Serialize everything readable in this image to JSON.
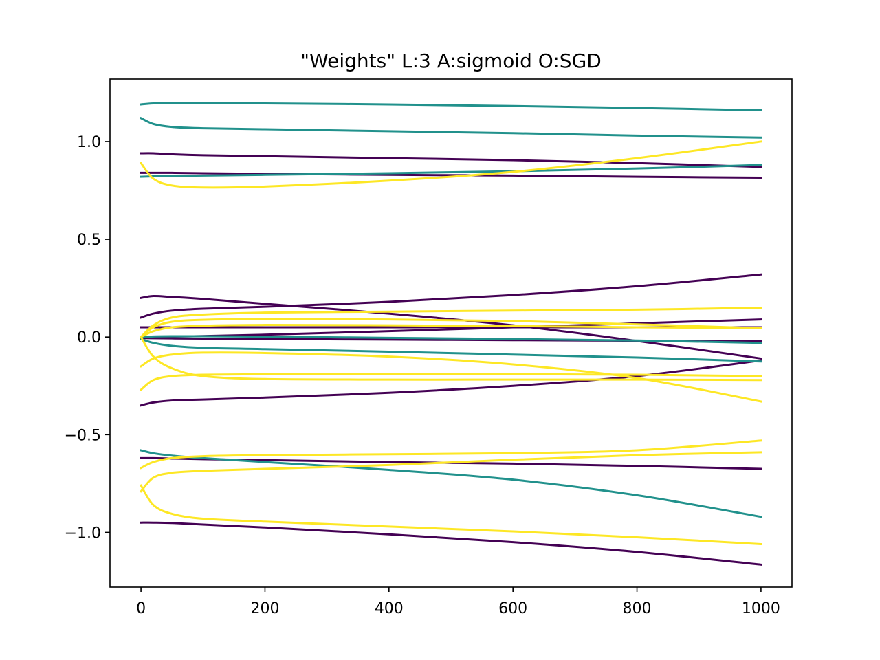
{
  "chart_data": {
    "type": "line",
    "title": "\"Weights\" L:3 A:sigmoid O:SGD",
    "xlabel": "",
    "ylabel": "",
    "xlim": [
      -50,
      1050
    ],
    "ylim": [
      -1.28,
      1.32
    ],
    "xticks": [
      0,
      200,
      400,
      600,
      800,
      1000
    ],
    "xtick_labels": [
      "0",
      "200",
      "400",
      "600",
      "800",
      "1000"
    ],
    "yticks": [
      -1.0,
      -0.5,
      0.0,
      0.5,
      1.0
    ],
    "ytick_labels": [
      "−1.0",
      "−0.5",
      "0.0",
      "0.5",
      "1.0"
    ],
    "grid": false,
    "legend": "none",
    "colors": {
      "layer1": "#440154",
      "layer2": "#21918c",
      "layer3": "#fde725",
      "axes": "#000000",
      "background": "#ffffff"
    },
    "series": [
      {
        "color_key": "layer1",
        "x": [
          0,
          20,
          50,
          100,
          200,
          400,
          600,
          800,
          1000
        ],
        "y": [
          0.94,
          0.94,
          0.935,
          0.93,
          0.925,
          0.915,
          0.905,
          0.89,
          0.87
        ]
      },
      {
        "color_key": "layer1",
        "x": [
          0,
          20,
          50,
          100,
          200,
          400,
          600,
          800,
          1000
        ],
        "y": [
          0.84,
          0.84,
          0.84,
          0.838,
          0.835,
          0.83,
          0.826,
          0.82,
          0.815
        ]
      },
      {
        "color_key": "layer1",
        "x": [
          0,
          20,
          50,
          100,
          200,
          400,
          600,
          800,
          1000
        ],
        "y": [
          0.2,
          0.21,
          0.205,
          0.195,
          0.17,
          0.12,
          0.06,
          -0.02,
          -0.11
        ]
      },
      {
        "color_key": "layer1",
        "x": [
          0,
          20,
          50,
          100,
          200,
          400,
          600,
          800,
          1000
        ],
        "y": [
          0.1,
          0.12,
          0.135,
          0.145,
          0.155,
          0.18,
          0.215,
          0.26,
          0.32
        ]
      },
      {
        "color_key": "layer1",
        "x": [
          0,
          20,
          50,
          100,
          200,
          400,
          600,
          800,
          1000
        ],
        "y": [
          0.05,
          0.05,
          0.05,
          0.05,
          0.05,
          0.05,
          0.05,
          0.05,
          0.05
        ]
      },
      {
        "color_key": "layer1",
        "x": [
          0,
          20,
          50,
          100,
          200,
          400,
          600,
          800,
          1000
        ],
        "y": [
          0.0,
          0.0,
          0.002,
          0.005,
          0.012,
          0.03,
          0.05,
          0.07,
          0.09
        ]
      },
      {
        "color_key": "layer1",
        "x": [
          0,
          20,
          50,
          100,
          200,
          400,
          600,
          800,
          1000
        ],
        "y": [
          -0.005,
          -0.006,
          -0.007,
          -0.008,
          -0.01,
          -0.013,
          -0.016,
          -0.019,
          -0.022
        ]
      },
      {
        "color_key": "layer1",
        "x": [
          0,
          20,
          50,
          100,
          200,
          400,
          600,
          800,
          1000
        ],
        "y": [
          -0.35,
          -0.335,
          -0.325,
          -0.32,
          -0.31,
          -0.285,
          -0.25,
          -0.2,
          -0.12
        ]
      },
      {
        "color_key": "layer1",
        "x": [
          0,
          20,
          50,
          100,
          200,
          400,
          600,
          800,
          1000
        ],
        "y": [
          -0.62,
          -0.62,
          -0.622,
          -0.625,
          -0.63,
          -0.64,
          -0.648,
          -0.66,
          -0.675
        ]
      },
      {
        "color_key": "layer1",
        "x": [
          0,
          20,
          50,
          100,
          200,
          400,
          600,
          800,
          1000
        ],
        "y": [
          -0.95,
          -0.95,
          -0.952,
          -0.96,
          -0.975,
          -1.01,
          -1.05,
          -1.1,
          -1.165
        ]
      },
      {
        "color_key": "layer2",
        "x": [
          0,
          20,
          50,
          100,
          200,
          400,
          600,
          800,
          1000
        ],
        "y": [
          1.19,
          1.195,
          1.197,
          1.197,
          1.195,
          1.19,
          1.182,
          1.172,
          1.16
        ]
      },
      {
        "color_key": "layer2",
        "x": [
          0,
          20,
          50,
          100,
          200,
          400,
          600,
          800,
          1000
        ],
        "y": [
          1.12,
          1.09,
          1.075,
          1.068,
          1.063,
          1.053,
          1.043,
          1.03,
          1.02
        ]
      },
      {
        "color_key": "layer2",
        "x": [
          0,
          20,
          50,
          100,
          200,
          400,
          600,
          800,
          1000
        ],
        "y": [
          0.82,
          0.822,
          0.824,
          0.826,
          0.83,
          0.838,
          0.848,
          0.862,
          0.88
        ]
      },
      {
        "color_key": "layer2",
        "x": [
          0,
          20,
          50,
          100,
          200,
          400,
          600,
          800,
          1000
        ],
        "y": [
          0.0,
          0.003,
          0.004,
          0.004,
          0.002,
          -0.004,
          -0.01,
          -0.018,
          -0.03
        ]
      },
      {
        "color_key": "layer2",
        "x": [
          0,
          20,
          50,
          100,
          200,
          400,
          600,
          800,
          1000
        ],
        "y": [
          -0.01,
          -0.03,
          -0.045,
          -0.055,
          -0.062,
          -0.075,
          -0.09,
          -0.105,
          -0.125
        ]
      },
      {
        "color_key": "layer2",
        "x": [
          0,
          20,
          50,
          100,
          200,
          400,
          600,
          800,
          1000
        ],
        "y": [
          -0.58,
          -0.595,
          -0.607,
          -0.62,
          -0.64,
          -0.68,
          -0.73,
          -0.81,
          -0.92
        ]
      },
      {
        "color_key": "layer3",
        "x": [
          0,
          20,
          50,
          100,
          200,
          400,
          600,
          800,
          1000
        ],
        "y": [
          0.89,
          0.81,
          0.775,
          0.765,
          0.77,
          0.8,
          0.845,
          0.915,
          1.0
        ]
      },
      {
        "color_key": "layer3",
        "x": [
          0,
          20,
          50,
          100,
          200,
          400,
          600,
          800,
          1000
        ],
        "y": [
          0.0,
          0.06,
          0.1,
          0.115,
          0.125,
          0.13,
          0.135,
          0.14,
          0.15
        ]
      },
      {
        "color_key": "layer3",
        "x": [
          0,
          20,
          50,
          100,
          200,
          400,
          600,
          800,
          1000
        ],
        "y": [
          0.0,
          0.05,
          0.078,
          0.088,
          0.092,
          0.09,
          0.082,
          0.065,
          0.045
        ]
      },
      {
        "color_key": "layer3",
        "x": [
          0,
          20,
          50,
          100,
          200,
          400,
          600,
          800,
          1000
        ],
        "y": [
          0.0,
          0.03,
          0.05,
          0.058,
          0.062,
          0.06,
          0.056,
          0.05,
          0.045
        ]
      },
      {
        "color_key": "layer3",
        "x": [
          0,
          20,
          50,
          100,
          200,
          400,
          600,
          800,
          1000
        ],
        "y": [
          -0.15,
          -0.11,
          -0.09,
          -0.08,
          -0.082,
          -0.1,
          -0.14,
          -0.21,
          -0.33
        ]
      },
      {
        "color_key": "layer3",
        "x": [
          0,
          20,
          50,
          100,
          200,
          400,
          600,
          800,
          1000
        ],
        "y": [
          -0.27,
          -0.22,
          -0.2,
          -0.193,
          -0.19,
          -0.19,
          -0.19,
          -0.193,
          -0.2
        ]
      },
      {
        "color_key": "layer3",
        "x": [
          0,
          20,
          50,
          100,
          200,
          400,
          600,
          800,
          1000
        ],
        "y": [
          0.0,
          -0.1,
          -0.16,
          -0.2,
          -0.215,
          -0.218,
          -0.218,
          -0.218,
          -0.22
        ]
      },
      {
        "color_key": "layer3",
        "x": [
          0,
          20,
          50,
          100,
          200,
          400,
          600,
          800,
          1000
        ],
        "y": [
          -0.67,
          -0.64,
          -0.62,
          -0.61,
          -0.605,
          -0.6,
          -0.595,
          -0.58,
          -0.53
        ]
      },
      {
        "color_key": "layer3",
        "x": [
          0,
          20,
          50,
          100,
          200,
          400,
          600,
          800,
          1000
        ],
        "y": [
          -0.79,
          -0.72,
          -0.695,
          -0.685,
          -0.675,
          -0.655,
          -0.628,
          -0.605,
          -0.59
        ]
      },
      {
        "color_key": "layer3",
        "x": [
          0,
          20,
          50,
          100,
          200,
          400,
          600,
          800,
          1000
        ],
        "y": [
          -0.76,
          -0.86,
          -0.905,
          -0.93,
          -0.945,
          -0.97,
          -0.995,
          -1.025,
          -1.06
        ]
      }
    ]
  }
}
